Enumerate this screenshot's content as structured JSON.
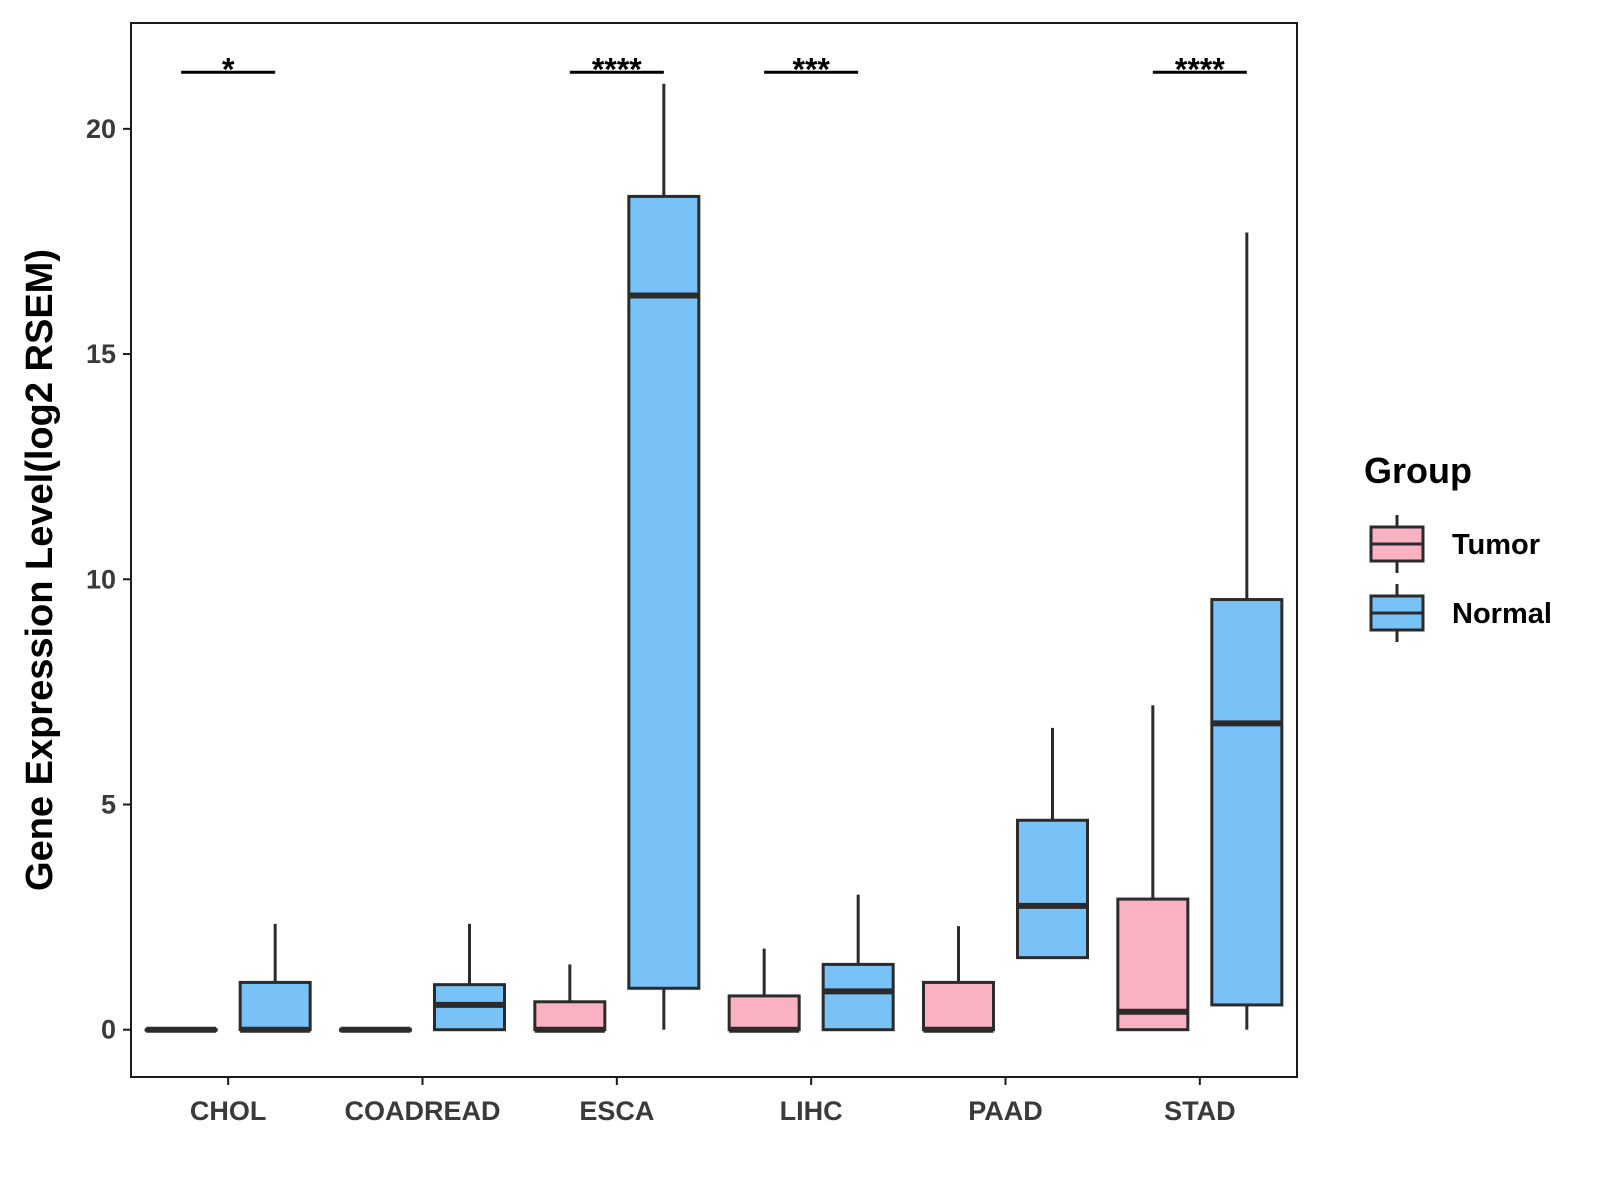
{
  "chart_data": {
    "type": "boxplot",
    "ylabel": "Gene Expression Level(log2 RSEM)",
    "xlabel": "",
    "ylim": [
      -1.05,
      22.35
    ],
    "yticks": [
      0,
      5,
      10,
      15,
      20
    ],
    "grid": false,
    "legend_position": "right",
    "categories": [
      "CHOL",
      "COADREAD",
      "ESCA",
      "LIHC",
      "PAAD",
      "STAD"
    ],
    "legend": {
      "title": "Group",
      "entries": [
        "Tumor",
        "Normal"
      ]
    },
    "colors": {
      "Tumor": "#FAB1C1",
      "Normal": "#78C2F8",
      "stroke": "#2b2b2b"
    },
    "series": [
      {
        "name": "Tumor",
        "boxes": [
          {
            "category": "CHOL",
            "min": 0,
            "q1": 0,
            "median": 0,
            "q3": 0,
            "max": 0
          },
          {
            "category": "COADREAD",
            "min": 0,
            "q1": 0,
            "median": 0,
            "q3": 0,
            "max": 0
          },
          {
            "category": "ESCA",
            "min": 0,
            "q1": 0,
            "median": 0,
            "q3": 0.62,
            "max": 1.45
          },
          {
            "category": "LIHC",
            "min": 0,
            "q1": 0,
            "median": 0,
            "q3": 0.75,
            "max": 1.8
          },
          {
            "category": "PAAD",
            "min": 0,
            "q1": 0,
            "median": 0,
            "q3": 1.05,
            "max": 2.3
          },
          {
            "category": "STAD",
            "min": 0,
            "q1": 0,
            "median": 0.4,
            "q3": 2.9,
            "max": 7.2
          }
        ]
      },
      {
        "name": "Normal",
        "boxes": [
          {
            "category": "CHOL",
            "min": 0,
            "q1": 0,
            "median": 0,
            "q3": 1.05,
            "max": 2.35
          },
          {
            "category": "COADREAD",
            "min": 0,
            "q1": 0,
            "median": 0.55,
            "q3": 1.0,
            "max": 2.35
          },
          {
            "category": "ESCA",
            "min": 0,
            "q1": 0.92,
            "median": 16.3,
            "q3": 18.5,
            "max": 21.0
          },
          {
            "category": "LIHC",
            "min": 0,
            "q1": 0,
            "median": 0.85,
            "q3": 1.45,
            "max": 3.0
          },
          {
            "category": "PAAD",
            "min": 1.6,
            "q1": 1.6,
            "median": 2.75,
            "q3": 4.65,
            "max": 6.7
          },
          {
            "category": "STAD",
            "min": 0,
            "q1": 0.55,
            "median": 6.8,
            "q3": 9.55,
            "max": 17.7
          }
        ]
      }
    ],
    "significance": [
      {
        "category": "CHOL",
        "label": "*"
      },
      {
        "category": "ESCA",
        "label": "****"
      },
      {
        "category": "LIHC",
        "label": "***"
      },
      {
        "category": "STAD",
        "label": "****"
      }
    ],
    "significance_y": 21.3
  }
}
